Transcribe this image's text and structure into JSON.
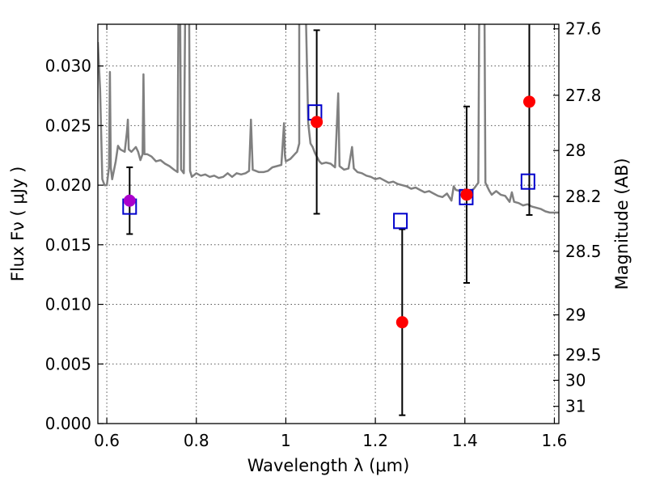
{
  "chart_data": {
    "type": "scatter",
    "xlabel": "Wavelength  λ (μm)",
    "ylabel": "Flux  Fν  ( μJy )",
    "y2label": "Magnitude (AB)",
    "xlim": [
      0.58,
      1.61
    ],
    "ylim": [
      0.0,
      0.0335
    ],
    "grid": true,
    "x_ticks": [
      {
        "value": 0.6,
        "label": "0.6"
      },
      {
        "value": 0.8,
        "label": "0.8"
      },
      {
        "value": 1.0,
        "label": "1"
      },
      {
        "value": 1.2,
        "label": "1.2"
      },
      {
        "value": 1.4,
        "label": "1.4"
      },
      {
        "value": 1.6,
        "label": "1.6"
      }
    ],
    "y_ticks": [
      {
        "value": 0.0,
        "label": "0.000"
      },
      {
        "value": 0.005,
        "label": "0.005"
      },
      {
        "value": 0.01,
        "label": "0.010"
      },
      {
        "value": 0.015,
        "label": "0.015"
      },
      {
        "value": 0.02,
        "label": "0.020"
      },
      {
        "value": 0.025,
        "label": "0.025"
      },
      {
        "value": 0.03,
        "label": "0.030"
      }
    ],
    "y2_ticks": [
      {
        "mag": 27.6,
        "label": "27.6"
      },
      {
        "mag": 27.8,
        "label": "27.8"
      },
      {
        "mag": 28.0,
        "label": "28"
      },
      {
        "mag": 28.2,
        "label": "28.2"
      },
      {
        "mag": 28.5,
        "label": "28.5"
      },
      {
        "mag": 29.0,
        "label": "29"
      },
      {
        "mag": 29.5,
        "label": "29.5"
      },
      {
        "mag": 30.0,
        "label": "30"
      },
      {
        "mag": 31.0,
        "label": "31"
      }
    ],
    "colors": {
      "template": "#808080",
      "observed": "#ff0000",
      "model": "#0000cc",
      "highlight": "#aa00cc",
      "errorbar": "#000000",
      "grid": "#555555"
    },
    "template_spectrum": [
      [
        0.58,
        0.032
      ],
      [
        0.585,
        0.028
      ],
      [
        0.59,
        0.0205
      ],
      [
        0.595,
        0.02
      ],
      [
        0.6,
        0.02
      ],
      [
        0.605,
        0.0215
      ],
      [
        0.607,
        0.0295
      ],
      [
        0.609,
        0.0215
      ],
      [
        0.612,
        0.0205
      ],
      [
        0.62,
        0.022
      ],
      [
        0.625,
        0.0233
      ],
      [
        0.63,
        0.023
      ],
      [
        0.64,
        0.0228
      ],
      [
        0.645,
        0.0245
      ],
      [
        0.647,
        0.0255
      ],
      [
        0.649,
        0.023
      ],
      [
        0.655,
        0.0228
      ],
      [
        0.66,
        0.023
      ],
      [
        0.665,
        0.0232
      ],
      [
        0.67,
        0.0228
      ],
      [
        0.675,
        0.0221
      ],
      [
        0.68,
        0.0226
      ],
      [
        0.682,
        0.0293
      ],
      [
        0.684,
        0.0226
      ],
      [
        0.69,
        0.0226
      ],
      [
        0.7,
        0.0224
      ],
      [
        0.71,
        0.022
      ],
      [
        0.72,
        0.0221
      ],
      [
        0.73,
        0.0218
      ],
      [
        0.74,
        0.0216
      ],
      [
        0.75,
        0.0213
      ],
      [
        0.758,
        0.0211
      ],
      [
        0.76,
        0.034
      ],
      [
        0.764,
        0.034
      ],
      [
        0.766,
        0.0213
      ],
      [
        0.772,
        0.021
      ],
      [
        0.775,
        0.034
      ],
      [
        0.779,
        0.034
      ],
      [
        0.781,
        0.034
      ],
      [
        0.784,
        0.034
      ],
      [
        0.786,
        0.0212
      ],
      [
        0.79,
        0.0207
      ],
      [
        0.8,
        0.021
      ],
      [
        0.81,
        0.0208
      ],
      [
        0.82,
        0.0209
      ],
      [
        0.83,
        0.0207
      ],
      [
        0.84,
        0.0208
      ],
      [
        0.85,
        0.0206
      ],
      [
        0.86,
        0.0207
      ],
      [
        0.87,
        0.021
      ],
      [
        0.88,
        0.0207
      ],
      [
        0.89,
        0.021
      ],
      [
        0.9,
        0.0209
      ],
      [
        0.91,
        0.021
      ],
      [
        0.918,
        0.0212
      ],
      [
        0.922,
        0.0255
      ],
      [
        0.926,
        0.0213
      ],
      [
        0.94,
        0.0211
      ],
      [
        0.95,
        0.0211
      ],
      [
        0.96,
        0.0212
      ],
      [
        0.97,
        0.0215
      ],
      [
        0.98,
        0.0216
      ],
      [
        0.99,
        0.0217
      ],
      [
        0.996,
        0.0252
      ],
      [
        0.998,
        0.0225
      ],
      [
        1.0,
        0.022
      ],
      [
        1.01,
        0.0222
      ],
      [
        1.02,
        0.0226
      ],
      [
        1.025,
        0.0228
      ],
      [
        1.03,
        0.0235
      ],
      [
        1.03,
        0.034
      ],
      [
        1.045,
        0.034
      ],
      [
        1.05,
        0.0252
      ],
      [
        1.055,
        0.0235
      ],
      [
        1.06,
        0.0232
      ],
      [
        1.065,
        0.0227
      ],
      [
        1.075,
        0.022
      ],
      [
        1.08,
        0.0218
      ],
      [
        1.09,
        0.0219
      ],
      [
        1.1,
        0.0218
      ],
      [
        1.11,
        0.0215
      ],
      [
        1.117,
        0.0277
      ],
      [
        1.12,
        0.0216
      ],
      [
        1.13,
        0.0213
      ],
      [
        1.14,
        0.0214
      ],
      [
        1.148,
        0.0232
      ],
      [
        1.152,
        0.0214
      ],
      [
        1.16,
        0.0211
      ],
      [
        1.17,
        0.021
      ],
      [
        1.18,
        0.0208
      ],
      [
        1.19,
        0.0207
      ],
      [
        1.2,
        0.0205
      ],
      [
        1.21,
        0.0206
      ],
      [
        1.22,
        0.0204
      ],
      [
        1.23,
        0.0202
      ],
      [
        1.24,
        0.0203
      ],
      [
        1.25,
        0.0201
      ],
      [
        1.26,
        0.02
      ],
      [
        1.27,
        0.0199
      ],
      [
        1.28,
        0.0197
      ],
      [
        1.29,
        0.0198
      ],
      [
        1.3,
        0.0196
      ],
      [
        1.31,
        0.0194
      ],
      [
        1.32,
        0.0195
      ],
      [
        1.33,
        0.0193
      ],
      [
        1.34,
        0.0191
      ],
      [
        1.35,
        0.019
      ],
      [
        1.36,
        0.0193
      ],
      [
        1.37,
        0.0187
      ],
      [
        1.375,
        0.0199
      ],
      [
        1.38,
        0.0196
      ],
      [
        1.39,
        0.0195
      ],
      [
        1.4,
        0.0196
      ],
      [
        1.41,
        0.0194
      ],
      [
        1.42,
        0.0197
      ],
      [
        1.43,
        0.0202
      ],
      [
        1.432,
        0.034
      ],
      [
        1.444,
        0.034
      ],
      [
        1.446,
        0.0202
      ],
      [
        1.455,
        0.0195
      ],
      [
        1.46,
        0.0192
      ],
      [
        1.47,
        0.0195
      ],
      [
        1.48,
        0.0192
      ],
      [
        1.49,
        0.0191
      ],
      [
        1.5,
        0.0186
      ],
      [
        1.505,
        0.0194
      ],
      [
        1.51,
        0.0186
      ],
      [
        1.52,
        0.0185
      ],
      [
        1.53,
        0.0183
      ],
      [
        1.54,
        0.0184
      ],
      [
        1.55,
        0.0182
      ],
      [
        1.56,
        0.0181
      ],
      [
        1.57,
        0.018
      ],
      [
        1.58,
        0.0178
      ],
      [
        1.59,
        0.0177
      ],
      [
        1.61,
        0.0177
      ]
    ],
    "observed": [
      {
        "x": 0.651,
        "y": 0.0187,
        "yerr": 0.0028,
        "highlight": true
      },
      {
        "x": 1.069,
        "y": 0.0253,
        "yerr": 0.0077
      },
      {
        "x": 1.26,
        "y": 0.0085,
        "yerr": 0.0078
      },
      {
        "x": 1.404,
        "y": 0.0192,
        "yerr": 0.0074
      },
      {
        "x": 1.544,
        "y": 0.027,
        "yerr": 0.0095
      }
    ],
    "model": [
      {
        "x": 0.651,
        "y": 0.0182
      },
      {
        "x": 1.065,
        "y": 0.0261
      },
      {
        "x": 1.256,
        "y": 0.017
      },
      {
        "x": 1.403,
        "y": 0.019
      },
      {
        "x": 1.541,
        "y": 0.0203
      }
    ]
  }
}
